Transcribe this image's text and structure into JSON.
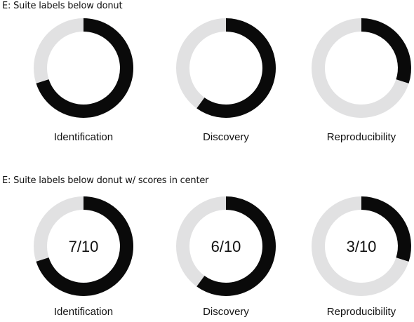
{
  "panels": [
    {
      "heading": "E: Suite labels below donut",
      "show_scores": false
    },
    {
      "heading": "E: Suite labels below donut w/ scores in center",
      "show_scores": true
    }
  ],
  "colors": {
    "filled": "#0a0a0a",
    "track": "#e1e1e2",
    "text": "#111111"
  },
  "chart_data": [
    {
      "type": "pie",
      "style": "donut",
      "title": "",
      "categories": [
        "Identification",
        "Discovery",
        "Reproducibility"
      ],
      "values": [
        7,
        6,
        3
      ],
      "max": 10,
      "scores": [
        "",
        "",
        ""
      ]
    },
    {
      "type": "pie",
      "style": "donut",
      "title": "",
      "categories": [
        "Identification",
        "Discovery",
        "Reproducibility"
      ],
      "values": [
        7,
        6,
        3
      ],
      "max": 10,
      "scores": [
        "7/10",
        "6/10",
        "3/10"
      ]
    }
  ]
}
